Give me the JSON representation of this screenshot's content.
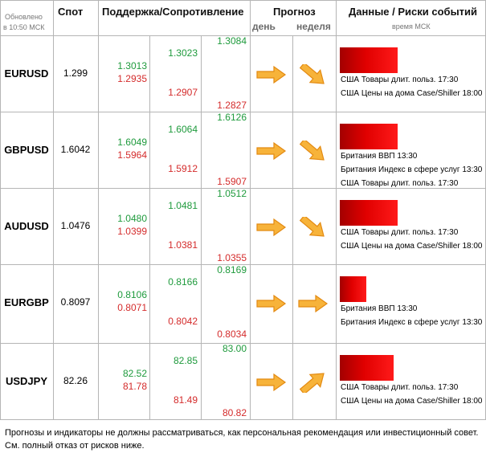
{
  "header": {
    "updated_line1": "Обновлено",
    "updated_line2": "в 10:50 МСК",
    "spot": "Спот",
    "support_resistance": "Поддержка/Сопротивление",
    "forecast": "Прогноз",
    "day": "день",
    "week": "неделя",
    "events": "Данные / Риски событий",
    "msk_time": "время МСК"
  },
  "rows": [
    {
      "pair": "EURUSD",
      "spot": "1.299",
      "s1": "1.3013",
      "s1b": "1.2935",
      "s2": "1.3023",
      "s2b": "1.2907",
      "s3": "1.3084",
      "s3b": "1.2827",
      "day": "right",
      "week": "down-right",
      "risk": 0.75,
      "events": [
        "США Товары длит. польз. 17:30",
        "США Цены на дома Case/Shiller 18:00"
      ]
    },
    {
      "pair": "GBPUSD",
      "spot": "1.6042",
      "s1": "1.6049",
      "s1b": "1.5964",
      "s2": "1.6064",
      "s2b": "1.5912",
      "s3": "1.6126",
      "s3b": "1.5907",
      "day": "right",
      "week": "down-right",
      "risk": 0.75,
      "events": [
        "Британия ВВП 13:30",
        "Британия Индекс в сфере услуг 13:30",
        "США Товары длит. польз. 17:30"
      ]
    },
    {
      "pair": "AUDUSD",
      "spot": "1.0476",
      "s1": "1.0480",
      "s1b": "1.0399",
      "s2": "1.0481",
      "s2b": "1.0381",
      "s3": "1.0512",
      "s3b": "1.0355",
      "day": "right",
      "week": "down-right",
      "risk": 0.75,
      "events": [
        "США Товары длит. польз. 17:30",
        "США Цены на дома Case/Shiller 18:00"
      ]
    },
    {
      "pair": "EURGBP",
      "spot": "0.8097",
      "s1": "0.8106",
      "s1b": "0.8071",
      "s2": "0.8166",
      "s2b": "0.8042",
      "s3": "0.8169",
      "s3b": "0.8034",
      "day": "right",
      "week": "right",
      "risk": 0.34,
      "events": [
        "Британия ВВП 13:30",
        "Британия Индекс в сфере услуг 13:30"
      ]
    },
    {
      "pair": "USDJPY",
      "spot": "82.26",
      "s1": "82.52",
      "s1b": "81.78",
      "s2": "82.85",
      "s2b": "81.49",
      "s3": "83.00",
      "s3b": "80.82",
      "day": "right",
      "week": "up-right",
      "risk": 0.7,
      "events": [
        "США Товары длит. польз. 17:30",
        "США Цены на дома Case/Shiller 18:00"
      ]
    }
  ],
  "footer": "Прогнозы и индикаторы не должны рассматриваться, как персональная рекомендация или инвестиционный совет. См. полный отказ от рисков ниже.",
  "colors": {
    "green": "#1e9a3c",
    "red": "#d42b2b",
    "arrow_fill": "#f7b33a",
    "arrow_stroke": "#e38a12",
    "risk": "#e00000"
  }
}
